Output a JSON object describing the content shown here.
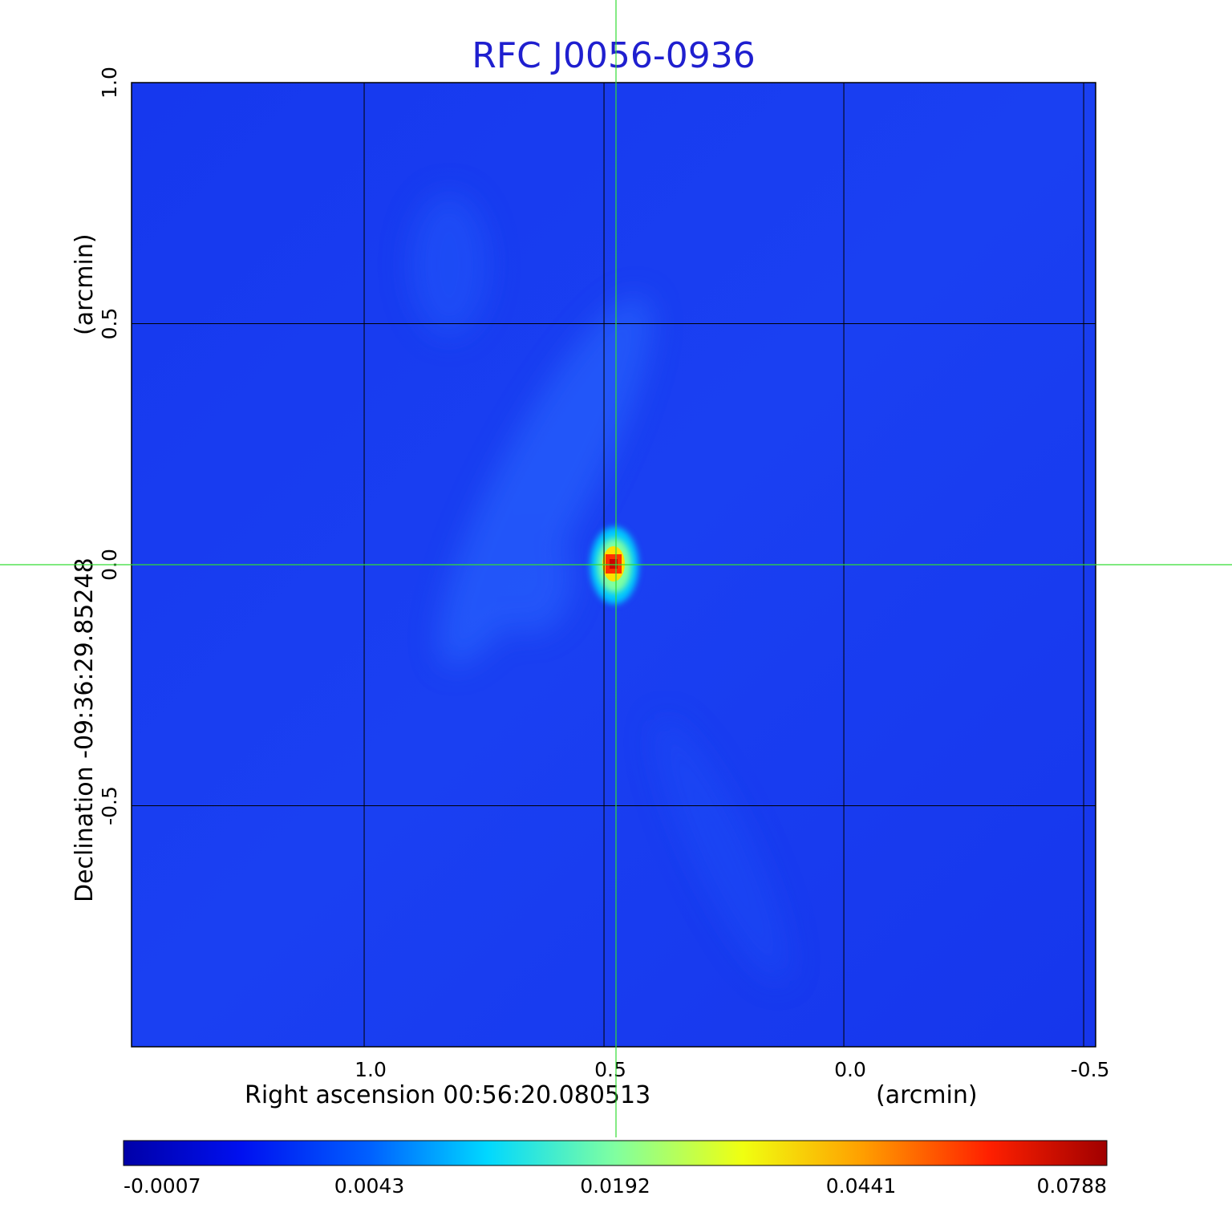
{
  "colors": {
    "title": "#1f1fcf",
    "background_map": "#1a3cf0",
    "grid": "#000000",
    "crosshair": "#33dd33"
  },
  "chart_data": {
    "type": "heatmap",
    "title": "RFC J0056-0936",
    "xlabel": "Right ascension  00:56:20.080513",
    "xunit": "(arcmin)",
    "ylabel": "Declination  -09:36:29.85248",
    "yunit": "(arcmin)",
    "x_ticks": [
      {
        "value": 1.0,
        "label": "1.0"
      },
      {
        "value": 0.5,
        "label": "0.5"
      },
      {
        "value": 0.0,
        "label": "0.0"
      },
      {
        "value": -0.5,
        "label": "-0.5"
      }
    ],
    "y_ticks": [
      {
        "value": 1.0,
        "label": "1.0"
      },
      {
        "value": 0.5,
        "label": "0.5"
      },
      {
        "value": 0.0,
        "label": "0.0"
      },
      {
        "value": -0.5,
        "label": "-0.5"
      }
    ],
    "xlim": [
      1.485,
      -0.525
    ],
    "ylim": [
      -1.0,
      1.0
    ],
    "grid": true,
    "crosshair": {
      "x": 0.475,
      "y": 0.0
    },
    "colormap": "jet",
    "colorbar": {
      "placement": "bottom",
      "ticks": [
        "-0.0007",
        "0.0043",
        "0.0192",
        "0.0441",
        "0.0788"
      ]
    },
    "peak": {
      "x": 0.475,
      "y": 0.01,
      "value": 0.0788
    },
    "background_level": -0.0007
  }
}
